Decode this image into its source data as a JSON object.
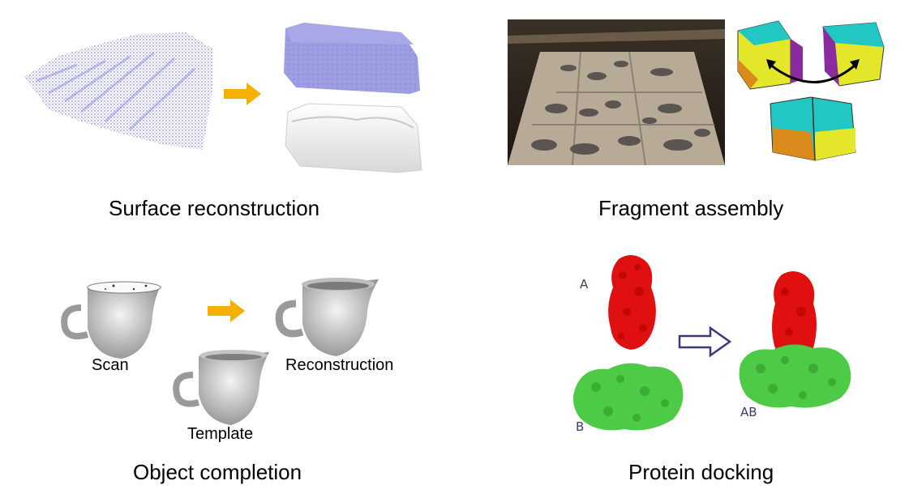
{
  "panels": {
    "surface": {
      "caption": "Surface reconstruction"
    },
    "fragment": {
      "caption": "Fragment assembly"
    },
    "object": {
      "caption": "Object completion",
      "scan_label": "Scan",
      "template_label": "Template",
      "reconstruction_label": "Reconstruction"
    },
    "protein": {
      "caption": "Protein docking",
      "label_a": "A",
      "label_b": "B",
      "label_ab": "AB"
    }
  },
  "colors": {
    "point_cloud": "#8a8ad6",
    "surface_blue": "#9a9ae0",
    "surface_white": "#f2f2f2",
    "arrow_orange": "#f5b000",
    "fragment_cyan": "#22c6c2",
    "fragment_yellow": "#e4e62a",
    "fragment_purple": "#8a2ca0",
    "fragment_orange": "#d98a1a",
    "protein_red": "#e01010",
    "protein_green": "#4ecb46",
    "protein_arrow": "#3a3a7a"
  }
}
